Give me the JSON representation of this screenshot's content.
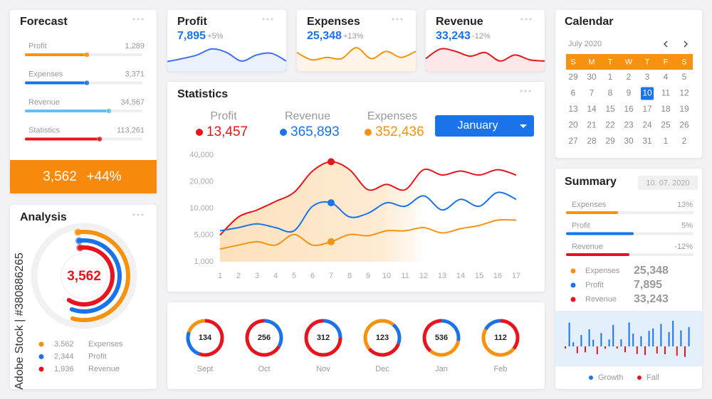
{
  "watermark": "Adobe Stock | #380886265",
  "forecast": {
    "title": "Forecast",
    "items": [
      {
        "label": "Profit",
        "value": "1,289"
      },
      {
        "label": "Expenses",
        "value": "3,371"
      },
      {
        "label": "Revenue",
        "value": "34,567"
      },
      {
        "label": "Statistics",
        "value": "113,261"
      }
    ],
    "total": "3,562",
    "change": "+44%"
  },
  "kpis": [
    {
      "title": "Profit",
      "value": "7,895",
      "change": "+5%",
      "color": "#3d6ff0"
    },
    {
      "title": "Expenses",
      "value": "25,348",
      "change": "+13%",
      "color": "#f7920f"
    },
    {
      "title": "Revenue",
      "value": "33,243",
      "change": "-12%",
      "color": "#e8141d"
    }
  ],
  "calendar": {
    "title": "Calendar",
    "month": "July 2020",
    "weekdays": [
      "S",
      "M",
      "T",
      "W",
      "T",
      "F",
      "S"
    ],
    "weeks": [
      [
        29,
        30,
        1,
        2,
        3,
        4,
        5
      ],
      [
        6,
        7,
        8,
        9,
        10,
        11,
        12
      ],
      [
        13,
        14,
        15,
        16,
        17,
        18,
        19
      ],
      [
        20,
        21,
        22,
        23,
        24,
        25,
        26
      ],
      [
        27,
        28,
        29,
        30,
        31,
        1,
        2
      ]
    ],
    "selected_day": 10
  },
  "statistics": {
    "title": "Statistics",
    "dropdown": "January",
    "chart": {
      "type": "line",
      "x": [
        1,
        2,
        3,
        4,
        5,
        6,
        7,
        8,
        9,
        10,
        11,
        12,
        13,
        14,
        15,
        16,
        17
      ],
      "xlim": [
        1,
        17
      ],
      "ylim": [
        1000,
        40000
      ],
      "yticks": [
        {
          "value": 1000,
          "label": "1,000"
        },
        {
          "value": 5000,
          "label": "5,000"
        },
        {
          "value": 10000,
          "label": "10,000"
        },
        {
          "value": 20000,
          "label": "20,000"
        },
        {
          "value": 40000,
          "label": "40,000"
        }
      ],
      "series": [
        {
          "name": "Profit",
          "total": "13,457",
          "color": "#e8141d",
          "values": [
            5000,
            8400,
            9700,
            12600,
            16000,
            28000,
            35000,
            29000,
            17000,
            19000,
            17000,
            29000,
            25000,
            28000,
            25000,
            29000,
            25000
          ]
        },
        {
          "name": "Revenue",
          "total": "365,893",
          "color": "#1a73e8",
          "values": [
            5800,
            6400,
            7100,
            6400,
            5800,
            10800,
            12100,
            8400,
            9100,
            12100,
            10800,
            14700,
            9700,
            13400,
            10800,
            16000,
            13400
          ]
        },
        {
          "name": "Expenses",
          "total": "352,436",
          "color": "#f7920f",
          "values": [
            2900,
            3500,
            4000,
            3500,
            5100,
            3500,
            4000,
            5100,
            4900,
            5800,
            5800,
            6400,
            5400,
            6200,
            6800,
            7800,
            7800
          ]
        }
      ]
    }
  },
  "analysis": {
    "title": "Analysis",
    "center": "3,562",
    "items": [
      {
        "value": "3,562",
        "label": "Expenses",
        "color": "#f7920f"
      },
      {
        "value": "2,344",
        "label": "Profit",
        "color": "#1a73e8"
      },
      {
        "value": "1,936",
        "label": "Revenue",
        "color": "#e8141d"
      }
    ]
  },
  "months": [
    {
      "value": 134,
      "label": "Sept"
    },
    {
      "value": 256,
      "label": "Oct"
    },
    {
      "value": 312,
      "label": "Nov"
    },
    {
      "value": 123,
      "label": "Dec"
    },
    {
      "value": 536,
      "label": "Jan"
    },
    {
      "value": 112,
      "label": "Feb"
    }
  ],
  "summary": {
    "title": "Summary",
    "date": "10. 07. 2020",
    "bars": [
      {
        "label": "Expenses",
        "value": "13%",
        "color": "#f7920f"
      },
      {
        "label": "Profit",
        "value": "5%",
        "color": "#1a73e8"
      },
      {
        "label": "Revenue",
        "value": "-12%",
        "color": "#e8141d"
      }
    ],
    "totals": [
      {
        "label": "Expenses",
        "value": "25,348",
        "color": "#f7920f"
      },
      {
        "label": "Profit",
        "value": "7,895",
        "color": "#1a73e8"
      },
      {
        "label": "Revenue",
        "value": "33,243",
        "color": "#e8141d"
      }
    ],
    "legend": [
      {
        "label": "Growth",
        "color": "#1a73e8"
      },
      {
        "label": "Fall",
        "color": "#e8141d"
      }
    ]
  }
}
